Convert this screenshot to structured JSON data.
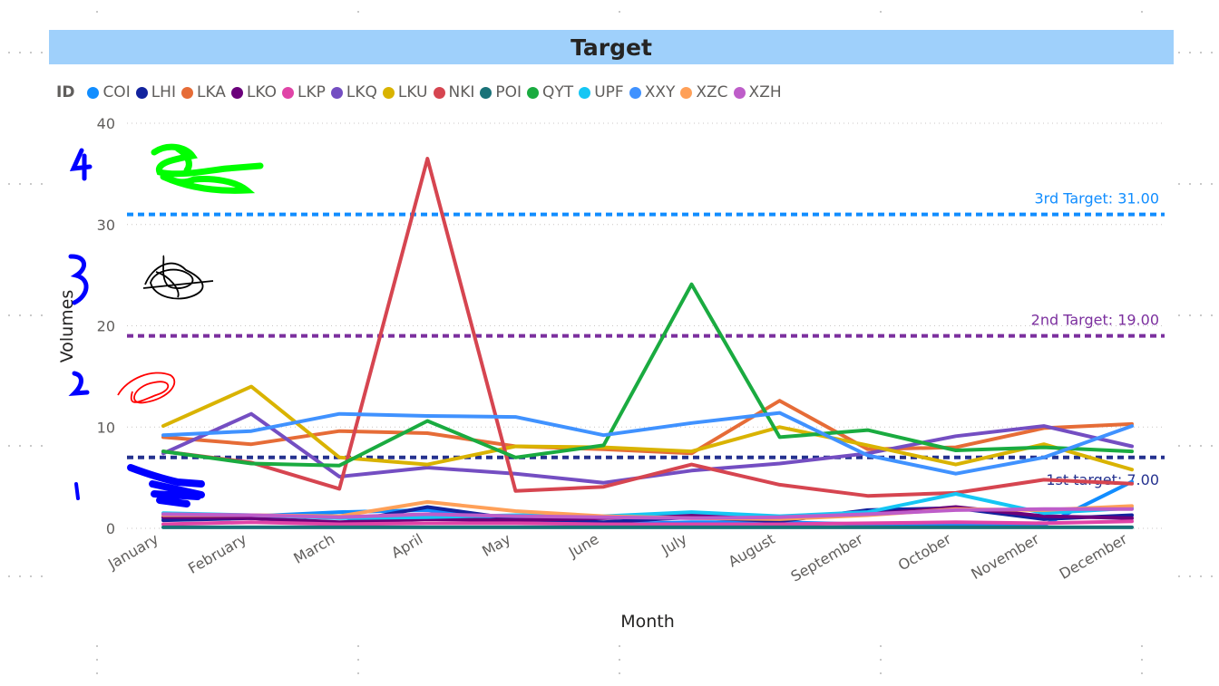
{
  "header": {
    "title": "Target"
  },
  "legend": {
    "title": "ID",
    "items": [
      {
        "label": "COI",
        "color": "#118DFF"
      },
      {
        "label": "LHI",
        "color": "#12239E"
      },
      {
        "label": "LKA",
        "color": "#E66C37"
      },
      {
        "label": "LKO",
        "color": "#6B007B"
      },
      {
        "label": "LKP",
        "color": "#E044A7"
      },
      {
        "label": "LKQ",
        "color": "#744EC2"
      },
      {
        "label": "LKU",
        "color": "#D9B300"
      },
      {
        "label": "NKI",
        "color": "#D64550"
      },
      {
        "label": "POI",
        "color": "#197278"
      },
      {
        "label": "QYT",
        "color": "#1AAB40"
      },
      {
        "label": "UPF",
        "color": "#15C6F4"
      },
      {
        "label": "XXY",
        "color": "#4092FF"
      },
      {
        "label": "XZC",
        "color": "#FFA058"
      },
      {
        "label": "XZH",
        "color": "#BE5DC9"
      }
    ]
  },
  "chart_data": {
    "type": "line",
    "title": "Target",
    "xlabel": "Month",
    "ylabel": "Volumes",
    "ylim": [
      0,
      40
    ],
    "yticks": [
      0,
      10,
      20,
      30,
      40
    ],
    "grid": true,
    "legend_position": "top-left",
    "categories": [
      "January",
      "February",
      "March",
      "April",
      "May",
      "June",
      "July",
      "August",
      "September",
      "October",
      "November",
      "December"
    ],
    "series": [
      {
        "name": "COI",
        "color": "#118DFF",
        "values": [
          1.0,
          1.2,
          1.6,
          1.8,
          0.6,
          0.4,
          0.6,
          0.6,
          0.4,
          0.3,
          0.3,
          4.6
        ]
      },
      {
        "name": "LHI",
        "color": "#12239E",
        "values": [
          0.8,
          1.0,
          0.5,
          2.1,
          0.9,
          0.6,
          1.1,
          0.7,
          1.8,
          2.0,
          0.9,
          1.3
        ]
      },
      {
        "name": "LKA",
        "color": "#E66C37",
        "values": [
          9.0,
          8.3,
          9.6,
          9.4,
          8.1,
          7.8,
          7.4,
          12.6,
          7.8,
          8.0,
          9.9,
          10.3
        ]
      },
      {
        "name": "LKO",
        "color": "#6B007B",
        "values": [
          1.1,
          1.0,
          0.6,
          0.9,
          0.8,
          1.0,
          1.3,
          1.0,
          1.4,
          2.1,
          1.2,
          1.0
        ]
      },
      {
        "name": "LKP",
        "color": "#E044A7",
        "values": [
          0.4,
          0.6,
          0.4,
          0.5,
          0.5,
          0.4,
          0.4,
          0.4,
          0.5,
          0.6,
          0.5,
          0.7
        ]
      },
      {
        "name": "LKQ",
        "color": "#744EC2",
        "values": [
          7.4,
          11.3,
          5.1,
          6.0,
          5.4,
          4.5,
          5.7,
          6.4,
          7.4,
          9.1,
          10.1,
          8.1
        ]
      },
      {
        "name": "LKU",
        "color": "#D9B300",
        "values": [
          10.1,
          14.0,
          7.0,
          6.3,
          8.1,
          8.0,
          7.6,
          10.0,
          8.2,
          6.3,
          8.3,
          5.8
        ]
      },
      {
        "name": "NKI",
        "color": "#D64550",
        "values": [
          7.6,
          6.5,
          3.9,
          36.5,
          3.7,
          4.1,
          6.3,
          4.3,
          3.2,
          3.5,
          4.8,
          4.4
        ]
      },
      {
        "name": "POI",
        "color": "#197278",
        "values": [
          0.1,
          0.1,
          0.1,
          0.1,
          0.1,
          0.1,
          0.1,
          0.1,
          0.1,
          0.1,
          0.1,
          0.1
        ]
      },
      {
        "name": "QYT",
        "color": "#1AAB40",
        "values": [
          7.6,
          6.4,
          6.2,
          10.6,
          7.0,
          8.2,
          24.1,
          9.0,
          9.7,
          7.7,
          8.0,
          7.6
        ]
      },
      {
        "name": "UPF",
        "color": "#15C6F4",
        "values": [
          1.5,
          1.3,
          1.0,
          1.1,
          1.3,
          1.2,
          1.6,
          1.2,
          1.6,
          3.4,
          1.5,
          2.0
        ]
      },
      {
        "name": "XXY",
        "color": "#4092FF",
        "values": [
          9.2,
          9.6,
          11.3,
          11.1,
          11.0,
          9.2,
          10.4,
          11.4,
          7.2,
          5.4,
          7.0,
          10.1
        ]
      },
      {
        "name": "XZC",
        "color": "#FFA058",
        "values": [
          1.3,
          1.3,
          1.2,
          2.6,
          1.7,
          1.2,
          1.0,
          0.9,
          1.3,
          1.9,
          1.8,
          2.2
        ]
      },
      {
        "name": "XZH",
        "color": "#BE5DC9",
        "values": [
          1.4,
          1.3,
          1.1,
          1.4,
          1.2,
          1.1,
          1.0,
          1.1,
          1.4,
          1.8,
          1.9,
          1.9
        ]
      }
    ],
    "reference_lines": [
      {
        "label": "3rd Target: 31.00",
        "value": 31,
        "color": "#118DFF"
      },
      {
        "label": "2nd Target: 19.00",
        "value": 19,
        "color": "#7B2F9E"
      },
      {
        "label": "1st target: 7.00",
        "value": 7,
        "color": "#24318F"
      }
    ]
  },
  "annotations": {
    "scribbles": [
      {
        "name": "level-4-mark",
        "text": "4",
        "color": "#0000FF"
      },
      {
        "name": "level-3-mark",
        "text": "3",
        "color": "#0000FF"
      },
      {
        "name": "level-2-mark",
        "text": "2",
        "color": "#0000FF"
      },
      {
        "name": "level-1-mark",
        "text": "1",
        "color": "#0000FF"
      }
    ]
  }
}
